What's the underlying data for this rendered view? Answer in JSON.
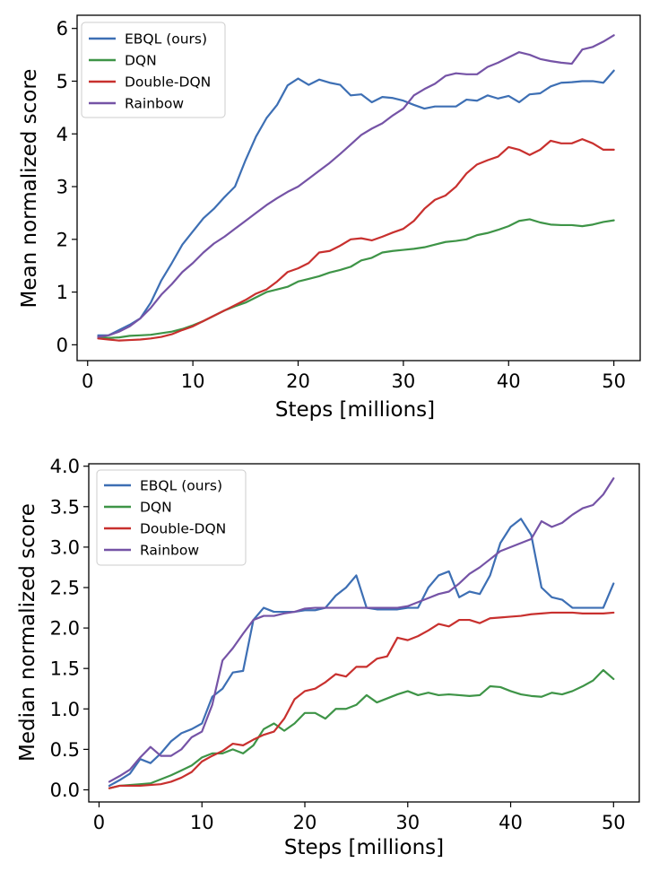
{
  "chart_data": [
    {
      "type": "line",
      "title": "",
      "xlabel": "Steps [millions]",
      "ylabel": "Mean normalized score",
      "xlim": [
        -1,
        52.5
      ],
      "ylim": [
        -0.3,
        6.25
      ],
      "xticks": [
        0,
        10,
        20,
        30,
        40,
        50
      ],
      "yticks": [
        0,
        1,
        2,
        3,
        4,
        5,
        6
      ],
      "ytick_labels": [
        "0",
        "1",
        "2",
        "3",
        "4",
        "5",
        "6"
      ],
      "xtick_labels": [
        "0",
        "10",
        "20",
        "30",
        "40",
        "50"
      ],
      "grid": false,
      "legend": "top-left",
      "x": [
        1,
        2,
        3,
        4,
        5,
        6,
        7,
        8,
        9,
        10,
        11,
        12,
        13,
        14,
        15,
        16,
        17,
        18,
        19,
        20,
        21,
        22,
        23,
        24,
        25,
        26,
        27,
        28,
        29,
        30,
        31,
        32,
        33,
        34,
        35,
        36,
        37,
        38,
        39,
        40,
        41,
        42,
        43,
        44,
        45,
        46,
        47,
        48,
        49,
        50
      ],
      "series": [
        {
          "name": "EBQL (ours)",
          "color": "#3d6fb4",
          "values": [
            0.18,
            0.18,
            0.28,
            0.38,
            0.5,
            0.8,
            1.22,
            1.55,
            1.9,
            2.15,
            2.4,
            2.58,
            2.8,
            3.0,
            3.5,
            3.95,
            4.3,
            4.55,
            4.92,
            5.05,
            4.93,
            5.03,
            4.97,
            4.93,
            4.73,
            4.75,
            4.6,
            4.7,
            4.68,
            4.63,
            4.55,
            4.48,
            4.52,
            4.52,
            4.52,
            4.65,
            4.63,
            4.73,
            4.67,
            4.72,
            4.6,
            4.75,
            4.77,
            4.9,
            4.97,
            4.98,
            5.0,
            5.0,
            4.97,
            5.2
          ]
        },
        {
          "name": "DQN",
          "color": "#3e9447",
          "values": [
            0.15,
            0.13,
            0.14,
            0.17,
            0.18,
            0.19,
            0.22,
            0.25,
            0.3,
            0.37,
            0.45,
            0.55,
            0.65,
            0.73,
            0.8,
            0.9,
            1.0,
            1.05,
            1.1,
            1.2,
            1.25,
            1.3,
            1.37,
            1.42,
            1.48,
            1.6,
            1.65,
            1.75,
            1.78,
            1.8,
            1.82,
            1.85,
            1.9,
            1.95,
            1.97,
            2.0,
            2.08,
            2.12,
            2.18,
            2.25,
            2.35,
            2.38,
            2.32,
            2.28,
            2.27,
            2.27,
            2.25,
            2.28,
            2.33,
            2.36
          ]
        },
        {
          "name": "Double-DQN",
          "color": "#c8302e",
          "values": [
            0.12,
            0.1,
            0.08,
            0.09,
            0.1,
            0.12,
            0.15,
            0.2,
            0.28,
            0.35,
            0.45,
            0.55,
            0.65,
            0.75,
            0.85,
            0.97,
            1.05,
            1.2,
            1.38,
            1.45,
            1.55,
            1.75,
            1.78,
            1.88,
            2.0,
            2.02,
            1.98,
            2.05,
            2.13,
            2.2,
            2.35,
            2.58,
            2.75,
            2.83,
            3.0,
            3.25,
            3.42,
            3.5,
            3.57,
            3.75,
            3.7,
            3.6,
            3.7,
            3.87,
            3.82,
            3.82,
            3.9,
            3.82,
            3.7,
            3.7
          ]
        },
        {
          "name": "Rainbow",
          "color": "#7553a6",
          "values": [
            0.15,
            0.18,
            0.25,
            0.35,
            0.5,
            0.7,
            0.95,
            1.15,
            1.38,
            1.55,
            1.75,
            1.92,
            2.05,
            2.2,
            2.35,
            2.5,
            2.65,
            2.78,
            2.9,
            3.0,
            3.15,
            3.3,
            3.45,
            3.62,
            3.8,
            3.98,
            4.1,
            4.2,
            4.35,
            4.48,
            4.73,
            4.85,
            4.95,
            5.1,
            5.15,
            5.13,
            5.13,
            5.27,
            5.35,
            5.45,
            5.55,
            5.5,
            5.42,
            5.38,
            5.35,
            5.33,
            5.6,
            5.65,
            5.75,
            5.87
          ]
        }
      ]
    },
    {
      "type": "line",
      "title": "",
      "xlabel": "Steps [millions]",
      "ylabel": "Median normalized score",
      "xlim": [
        -1,
        52.5
      ],
      "ylim": [
        -0.15,
        4.03
      ],
      "xticks": [
        0,
        10,
        20,
        30,
        40,
        50
      ],
      "yticks": [
        0,
        0.5,
        1,
        1.5,
        2,
        2.5,
        3,
        3.5,
        4
      ],
      "ytick_labels": [
        "0.0",
        "0.5",
        "1.0",
        "1.5",
        "2.0",
        "2.5",
        "3.0",
        "3.5",
        "4.0"
      ],
      "xtick_labels": [
        "0",
        "10",
        "20",
        "30",
        "40",
        "50"
      ],
      "grid": false,
      "legend": "top-left",
      "x": [
        1,
        2,
        3,
        4,
        5,
        6,
        7,
        8,
        9,
        10,
        11,
        12,
        13,
        14,
        15,
        16,
        17,
        18,
        19,
        20,
        21,
        22,
        23,
        24,
        25,
        26,
        27,
        28,
        29,
        30,
        31,
        32,
        33,
        34,
        35,
        36,
        37,
        38,
        39,
        40,
        41,
        42,
        43,
        44,
        45,
        46,
        47,
        48,
        49,
        50
      ],
      "series": [
        {
          "name": "EBQL (ours)",
          "color": "#3d6fb4",
          "values": [
            0.05,
            0.12,
            0.2,
            0.38,
            0.33,
            0.45,
            0.6,
            0.7,
            0.75,
            0.82,
            1.15,
            1.25,
            1.45,
            1.47,
            2.1,
            2.25,
            2.2,
            2.2,
            2.2,
            2.22,
            2.22,
            2.25,
            2.4,
            2.5,
            2.65,
            2.25,
            2.23,
            2.23,
            2.23,
            2.25,
            2.25,
            2.5,
            2.65,
            2.7,
            2.38,
            2.45,
            2.42,
            2.65,
            3.05,
            3.25,
            3.35,
            3.15,
            2.5,
            2.38,
            2.35,
            2.25,
            2.25,
            2.25,
            2.25,
            2.55
          ]
        },
        {
          "name": "DQN",
          "color": "#3e9447",
          "values": [
            0.02,
            0.05,
            0.06,
            0.07,
            0.08,
            0.13,
            0.18,
            0.24,
            0.3,
            0.4,
            0.45,
            0.45,
            0.5,
            0.45,
            0.55,
            0.75,
            0.82,
            0.73,
            0.82,
            0.95,
            0.95,
            0.88,
            1.0,
            1.0,
            1.05,
            1.17,
            1.08,
            1.13,
            1.18,
            1.22,
            1.17,
            1.2,
            1.17,
            1.18,
            1.17,
            1.16,
            1.17,
            1.28,
            1.27,
            1.22,
            1.18,
            1.16,
            1.15,
            1.2,
            1.18,
            1.22,
            1.28,
            1.35,
            1.48,
            1.37
          ]
        },
        {
          "name": "Double-DQN",
          "color": "#c8302e",
          "values": [
            0.02,
            0.05,
            0.05,
            0.05,
            0.06,
            0.07,
            0.1,
            0.15,
            0.22,
            0.35,
            0.42,
            0.48,
            0.57,
            0.55,
            0.62,
            0.68,
            0.72,
            0.88,
            1.12,
            1.22,
            1.25,
            1.33,
            1.43,
            1.4,
            1.52,
            1.52,
            1.62,
            1.65,
            1.88,
            1.85,
            1.9,
            1.97,
            2.05,
            2.02,
            2.1,
            2.1,
            2.06,
            2.12,
            2.13,
            2.14,
            2.15,
            2.17,
            2.18,
            2.19,
            2.19,
            2.19,
            2.18,
            2.18,
            2.18,
            2.19
          ]
        },
        {
          "name": "Rainbow",
          "color": "#7553a6",
          "values": [
            0.1,
            0.17,
            0.25,
            0.4,
            0.53,
            0.42,
            0.42,
            0.5,
            0.65,
            0.72,
            1.05,
            1.6,
            1.75,
            1.93,
            2.1,
            2.15,
            2.15,
            2.18,
            2.2,
            2.24,
            2.25,
            2.25,
            2.25,
            2.25,
            2.25,
            2.25,
            2.25,
            2.25,
            2.25,
            2.27,
            2.32,
            2.37,
            2.42,
            2.45,
            2.55,
            2.67,
            2.75,
            2.85,
            2.95,
            3.0,
            3.05,
            3.1,
            3.32,
            3.25,
            3.3,
            3.4,
            3.48,
            3.52,
            3.65,
            3.85
          ]
        }
      ]
    }
  ]
}
